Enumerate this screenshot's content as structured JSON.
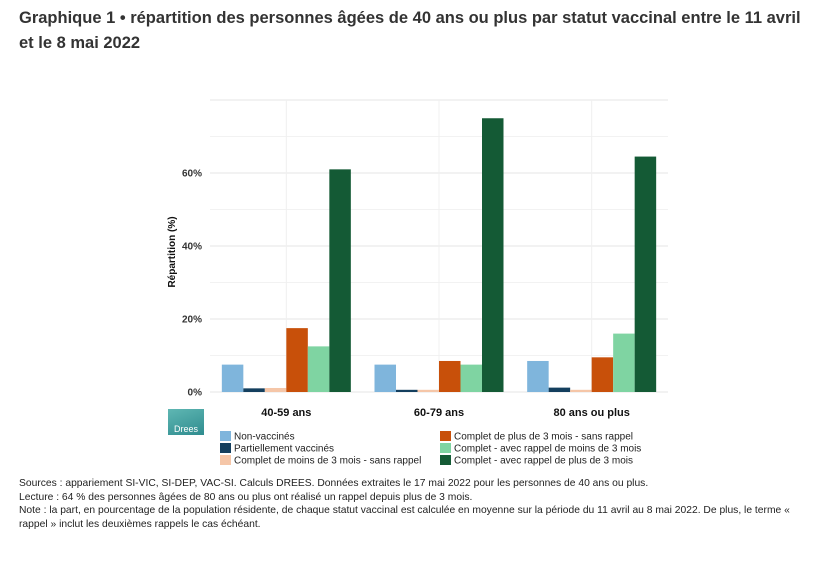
{
  "title": "Graphique 1 • répartition des personnes âgées de 40 ans ou plus par statut vaccinal entre le 11 avril et le 8 mai 2022",
  "logo_text": "Drees",
  "notes": [
    "Sources : appariement SI-VIC, SI-DEP, VAC-SI. Calculs DREES. Données extraites le 17 mai 2022 pour les personnes de 40 ans ou plus.",
    "Lecture : 64 % des personnes âgées de 80 ans ou plus ont réalisé un rappel depuis plus de 3 mois.",
    "Note : la part, en pourcentage de la population résidente, de chaque statut vaccinal est calculée en moyenne sur la période du 11 avril au 8 mai 2022. De plus, le terme « rappel » inclut les deuxièmes rappels le cas échéant."
  ],
  "chart_data": {
    "type": "bar",
    "ylabel": "Répartition (%)",
    "xlabel": "",
    "ylim": [
      0,
      80
    ],
    "yticks": [
      0,
      20,
      40,
      60
    ],
    "ytick_labels": [
      "0%",
      "20%",
      "40%",
      "60%"
    ],
    "grid": true,
    "legend_position": "bottom",
    "categories": [
      "40-59 ans",
      "60-79 ans",
      "80 ans ou plus"
    ],
    "series": [
      {
        "name": "Non-vaccinés",
        "color": "#7fb5dc",
        "values": [
          7.5,
          7.5,
          8.5
        ]
      },
      {
        "name": "Partiellement vaccinés",
        "color": "#143f5e",
        "values": [
          1,
          0.6,
          1.2
        ]
      },
      {
        "name": "Complet de moins de 3 mois - sans rappel",
        "color": "#f5c6a8",
        "values": [
          1.1,
          0.6,
          0.6
        ]
      },
      {
        "name": "Complet de plus de 3 mois - sans rappel",
        "color": "#c8500a",
        "values": [
          17.5,
          8.5,
          9.5
        ]
      },
      {
        "name": "Complet - avec rappel de moins de 3 mois",
        "color": "#7fd4a2",
        "values": [
          12.5,
          7.5,
          16
        ]
      },
      {
        "name": "Complet - avec rappel de plus de 3 mois",
        "color": "#145a35",
        "values": [
          61,
          75,
          64.5
        ]
      }
    ],
    "legend_order": [
      0,
      3,
      1,
      4,
      2,
      5
    ]
  }
}
